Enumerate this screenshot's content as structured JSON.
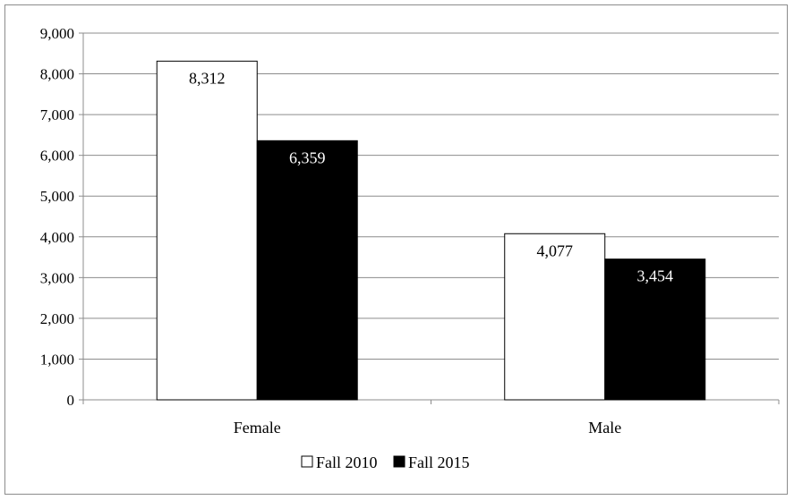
{
  "chart_data": {
    "type": "bar",
    "categories": [
      "Female",
      "Male"
    ],
    "series": [
      {
        "name": "Fall 2010",
        "values": [
          8312,
          4077
        ],
        "color": "#ffffff",
        "label_color": "#000000"
      },
      {
        "name": "Fall 2015",
        "values": [
          6359,
          3454
        ],
        "color": "#000000",
        "label_color": "#ffffff"
      }
    ],
    "data_labels": [
      [
        "8,312",
        "4,077"
      ],
      [
        "6,359",
        "3,454"
      ]
    ],
    "yticks": [
      "0",
      "1,000",
      "2,000",
      "3,000",
      "4,000",
      "5,000",
      "6,000",
      "7,000",
      "8,000",
      "9,000"
    ],
    "ylim": [
      0,
      9000
    ],
    "grid": true,
    "legend": "bottom",
    "title": "",
    "xlabel": "",
    "ylabel": ""
  }
}
